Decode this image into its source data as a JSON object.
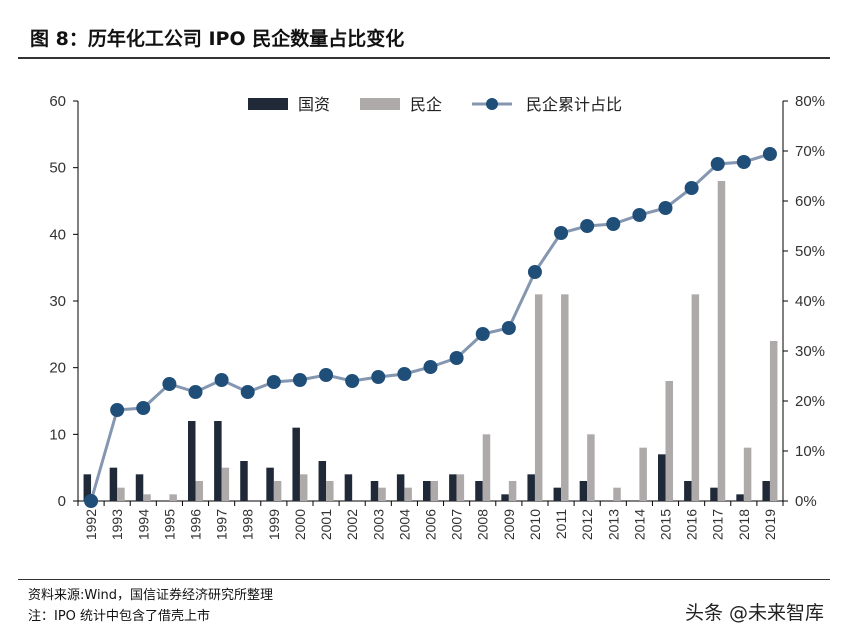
{
  "title": "图 8：历年化工公司 IPO 民企数量占比变化",
  "source": "资料来源:Wind，国信证券经济研究所整理",
  "note": "注：IPO 统计中包含了借壳上市",
  "watermark": "头条 @未来智库",
  "chart_data": {
    "type": "bar+line",
    "categories": [
      "1992",
      "1993",
      "1994",
      "1995",
      "1996",
      "1997",
      "1998",
      "1999",
      "2000",
      "2001",
      "2002",
      "2003",
      "2004",
      "2006",
      "2007",
      "2008",
      "2009",
      "2010",
      "2011",
      "2012",
      "2013",
      "2014",
      "2015",
      "2016",
      "2017",
      "2018",
      "2019"
    ],
    "series": [
      {
        "name": "国资",
        "type": "bar",
        "axis": "left",
        "color": "#1f2937",
        "values": [
          4,
          5,
          4,
          0,
          12,
          12,
          6,
          5,
          11,
          6,
          4,
          3,
          4,
          3,
          4,
          3,
          1,
          4,
          2,
          3,
          0,
          0,
          7,
          3,
          2,
          1,
          3
        ]
      },
      {
        "name": "民企",
        "type": "bar",
        "axis": "left",
        "color": "#aeaaaa",
        "values": [
          0,
          2,
          1,
          1,
          3,
          5,
          0,
          3,
          4,
          3,
          0,
          2,
          2,
          3,
          4,
          10,
          3,
          31,
          31,
          10,
          2,
          8,
          18,
          31,
          48,
          8,
          24
        ]
      },
      {
        "name": "民企累计占比",
        "type": "line",
        "axis": "right",
        "color": "#1f4e79",
        "line_color": "#8496b0",
        "values": [
          0,
          18.2,
          18.6,
          23.4,
          21.8,
          24.2,
          21.8,
          23.8,
          24.2,
          25.2,
          24,
          24.8,
          25.4,
          26.8,
          28.6,
          33.4,
          34.6,
          45.8,
          53.6,
          55,
          55.4,
          57.2,
          58.6,
          62.6,
          67.4,
          67.8,
          69.4
        ]
      }
    ],
    "left_axis": {
      "min": 0,
      "max": 60,
      "ticks": [
        "0",
        "10",
        "20",
        "30",
        "40",
        "50",
        "60"
      ]
    },
    "right_axis": {
      "min": 0,
      "max": 80,
      "ticks": [
        "0%",
        "10%",
        "20%",
        "30%",
        "40%",
        "50%",
        "60%",
        "70%",
        "80%"
      ]
    },
    "legend": "top",
    "grid": false
  }
}
